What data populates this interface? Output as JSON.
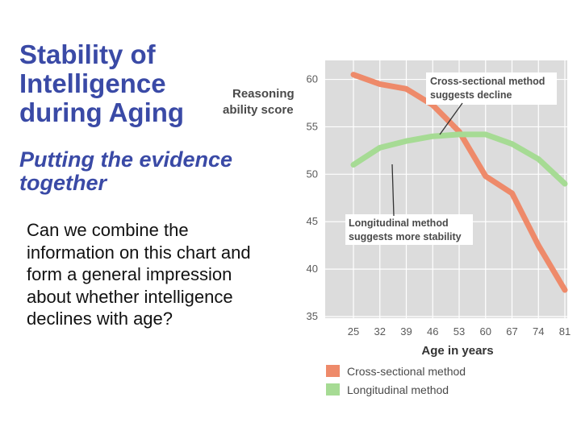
{
  "slide": {
    "title": "Stability of Intelligence during Aging",
    "subtitle": "Putting the evidence together",
    "body": "Can we combine the information on this chart and form a general impression about whether intelligence declines with age?"
  },
  "chart_data": {
    "type": "line",
    "ylabel_line1": "Reasoning",
    "ylabel_line2": "ability score",
    "xlabel": "Age in years",
    "x": [
      25,
      32,
      39,
      46,
      53,
      60,
      67,
      74,
      81
    ],
    "ylim": [
      35,
      62
    ],
    "yticks": [
      35,
      40,
      45,
      50,
      55,
      60
    ],
    "grid": true,
    "series": [
      {
        "name": "Cross-sectional method",
        "color": "#ee8a6a",
        "values": [
          60.5,
          59.5,
          59.0,
          57.3,
          54.5,
          49.8,
          48.0,
          42.5,
          37.8
        ]
      },
      {
        "name": "Longitudinal method",
        "color": "#a6db94",
        "values": [
          51.0,
          52.8,
          53.5,
          54.0,
          54.2,
          54.2,
          53.2,
          51.6,
          49.0
        ]
      }
    ],
    "annotations": [
      {
        "line1": "Cross-sectional method",
        "line2": "suggests decline"
      },
      {
        "line1": "Longitudinal method",
        "line2": "suggests more stability"
      }
    ],
    "legend_placement": "bottom"
  }
}
